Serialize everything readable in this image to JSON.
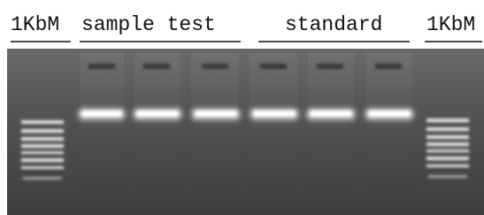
{
  "lane_labels": [
    "1KbM",
    "sample test",
    "standard",
    "1KbM"
  ]
}
